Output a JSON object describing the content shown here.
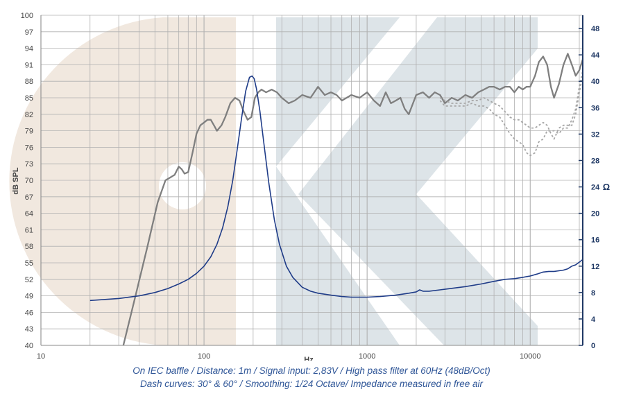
{
  "chart_data": {
    "type": "line",
    "title": "",
    "xlabel": "Hz",
    "ylabel_left": "dB SPL",
    "ylabel_right": "Ω",
    "xscale": "log",
    "xlim": [
      10,
      21000
    ],
    "ylim_left": [
      40,
      100
    ],
    "ylim_right": [
      0,
      50
    ],
    "x_ticks": [
      10,
      100,
      1000,
      10000
    ],
    "x_tick_labels": [
      "10",
      "100",
      "1000",
      "10000"
    ],
    "y_left_ticks": [
      40,
      43,
      46,
      49,
      52,
      55,
      58,
      61,
      64,
      67,
      70,
      73,
      76,
      79,
      82,
      85,
      88,
      91,
      94,
      97,
      100
    ],
    "y_right_ticks": [
      0,
      4,
      8,
      12,
      16,
      20,
      24,
      28,
      32,
      36,
      40,
      44,
      48
    ],
    "grid": true,
    "legend": "none",
    "colors": {
      "spl": "#7f7f7f",
      "impedance": "#1f3c88",
      "dashed": "#a6a6a6",
      "grid": "#b0b0b0",
      "right_axis": "#1f3864",
      "caption": "#2e5597"
    },
    "series": [
      {
        "axis": "left",
        "style": "solid",
        "x": [
          32,
          38,
          45,
          52,
          58,
          62,
          66,
          70,
          73,
          76,
          80,
          85,
          90,
          95,
          100,
          105,
          110,
          115,
          120,
          128,
          135,
          145,
          155,
          165,
          175,
          185,
          195,
          205,
          215,
          225,
          240,
          260,
          280,
          300,
          330,
          360,
          400,
          450,
          500,
          550,
          600,
          650,
          700,
          800,
          900,
          1000,
          1100,
          1200,
          1300,
          1400,
          1500,
          1600,
          1700,
          1800,
          2000,
          2200,
          2400,
          2600,
          2800,
          3000,
          3300,
          3600,
          4000,
          4400,
          4800,
          5200,
          5600,
          6000,
          6500,
          7000,
          7500,
          8000,
          8500,
          9000,
          9500,
          10000,
          10700,
          11300,
          12000,
          12700,
          13400,
          14000,
          15000,
          16000,
          17000,
          18000,
          19000,
          20000,
          21000
        ],
        "y": [
          40,
          49,
          58,
          66,
          70,
          70.5,
          71,
          72.5,
          72,
          71.2,
          71.5,
          75,
          78.5,
          80,
          80.5,
          81,
          81,
          80,
          79,
          80,
          81.5,
          84,
          85,
          84.5,
          82.5,
          81,
          81.5,
          85,
          86,
          86.5,
          86,
          86.5,
          86,
          85,
          84,
          84.5,
          85.5,
          85,
          87,
          85.5,
          86,
          85.5,
          84.5,
          85.5,
          85,
          86,
          84.5,
          83.5,
          86,
          84,
          84.5,
          85,
          83,
          82,
          85.5,
          86,
          85,
          86,
          85.5,
          84,
          85,
          84.5,
          85.5,
          85,
          86,
          86.5,
          87,
          87,
          86.5,
          87,
          87,
          86,
          87,
          86.5,
          87,
          87,
          89,
          91.5,
          92.5,
          91,
          87,
          85,
          87.5,
          91,
          93,
          91,
          89,
          90,
          92
        ]
      },
      {
        "axis": "left",
        "style": "dashed",
        "name": "30°",
        "x": [
          2800,
          3000,
          3300,
          3600,
          4000,
          4400,
          4800,
          5200,
          5600,
          6000,
          6500,
          7000,
          7500,
          8000,
          8500,
          9000,
          9500,
          10000,
          10700,
          11300,
          12000,
          12700,
          13400,
          14000,
          15000,
          16000,
          17000,
          18000,
          19000,
          20000,
          21000
        ],
        "y": [
          85,
          84.5,
          84,
          84,
          84,
          84.5,
          84.5,
          85,
          84.5,
          84,
          83.5,
          82.5,
          81.5,
          81,
          81,
          80.5,
          80,
          79.5,
          79.5,
          80,
          80.5,
          80,
          78.5,
          77.5,
          79.5,
          80,
          80,
          80,
          82,
          86,
          89
        ]
      },
      {
        "axis": "left",
        "style": "dashed",
        "name": "60°",
        "x": [
          2800,
          3000,
          3300,
          3600,
          4000,
          4400,
          4800,
          5200,
          5600,
          6000,
          6500,
          7000,
          7500,
          8000,
          8500,
          9000,
          9500,
          10000,
          10700,
          11300,
          12000,
          12700,
          13400,
          14000,
          15000,
          16000,
          17000,
          18000,
          19000,
          20000,
          21000
        ],
        "y": [
          84.5,
          83.5,
          83.5,
          83.5,
          83.5,
          84,
          83.5,
          83.5,
          83,
          82,
          81.5,
          80,
          78.5,
          77.5,
          77,
          76.5,
          75,
          74.5,
          75,
          77,
          77.5,
          79,
          79,
          79,
          78.5,
          79.5,
          79.5,
          81,
          83,
          87,
          90
        ]
      },
      {
        "axis": "right",
        "style": "solid",
        "x": [
          20,
          30,
          40,
          50,
          60,
          70,
          80,
          90,
          100,
          110,
          120,
          130,
          140,
          150,
          160,
          170,
          180,
          190,
          197,
          203,
          210,
          220,
          235,
          250,
          270,
          290,
          320,
          350,
          400,
          450,
          500,
          600,
          700,
          800,
          900,
          1000,
          1200,
          1500,
          1800,
          2000,
          2100,
          2200,
          2400,
          3000,
          4000,
          5000,
          6000,
          7000,
          8000,
          9000,
          10000,
          11000,
          12000,
          13000,
          14000,
          15000,
          16000,
          17000,
          18000,
          19000,
          20000,
          21000
        ],
        "y": [
          6.8,
          7.1,
          7.5,
          8.0,
          8.6,
          9.3,
          10.0,
          10.9,
          12.0,
          13.4,
          15.3,
          17.8,
          21.0,
          25.0,
          29.8,
          34.5,
          38.5,
          40.6,
          40.8,
          40.4,
          38.8,
          35.5,
          29.8,
          24.5,
          19.0,
          15.3,
          12.0,
          10.3,
          8.8,
          8.2,
          7.9,
          7.6,
          7.4,
          7.3,
          7.3,
          7.3,
          7.4,
          7.6,
          7.9,
          8.1,
          8.4,
          8.2,
          8.2,
          8.5,
          8.9,
          9.3,
          9.7,
          10.0,
          10.1,
          10.3,
          10.5,
          10.8,
          11.1,
          11.2,
          11.2,
          11.3,
          11.4,
          11.6,
          12.0,
          12.2,
          12.6,
          13.0
        ]
      }
    ]
  },
  "caption": {
    "line1": "On IEC baffle / Distance: 1m / Signal input: 2,83V / High pass filter at 60Hz (48dB/Oct)",
    "line2": "Dash curves: 30° & 60° / Smoothing: 1/24 Octave/ Impedance measured in free air"
  }
}
